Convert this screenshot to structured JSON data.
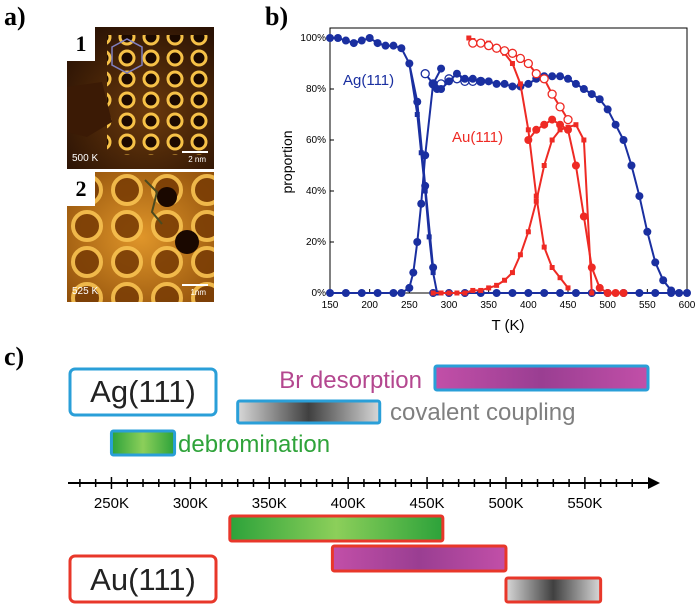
{
  "panels": {
    "a_label": "a)",
    "b_label": "b)",
    "c_label": "c)"
  },
  "stm": [
    {
      "number": "1",
      "temperature": "500 K",
      "scale": "2 nm"
    },
    {
      "number": "2",
      "temperature": "525 K",
      "scale": "1nm"
    }
  ],
  "colors": {
    "ag": "#1a2fa0",
    "au": "#ee2a24",
    "ag_box": "#2a9fd8",
    "au_box": "#e8372a",
    "br_text": "#b4478f",
    "coupling_text": "#7f7f7f",
    "debrom_text": "#2fa33a"
  },
  "chart_data": [
    {
      "type": "line",
      "xlabel": "T (K)",
      "ylabel": "proportion",
      "xlim": [
        150,
        600
      ],
      "ylim": [
        0,
        100
      ],
      "xticks": [
        "150",
        "200",
        "250",
        "300",
        "350",
        "400",
        "450",
        "500",
        "550",
        "600"
      ],
      "yticks": [
        "0%",
        "20%",
        "40%",
        "60%",
        "80%",
        "100%"
      ],
      "annotations": [
        "Ag(111)",
        "Au(111)"
      ],
      "series": [
        {
          "group": "Ag(111)",
          "marker": "filled-circle",
          "x": [
            150,
            160,
            170,
            180,
            190,
            200,
            210,
            220,
            230,
            240,
            250,
            260,
            270,
            280
          ],
          "y": [
            100,
            100,
            99,
            98,
            99,
            100,
            98,
            97,
            97,
            96,
            90,
            75,
            42,
            10
          ]
        },
        {
          "group": "Ag(111)",
          "marker": "open-circle",
          "x": [
            270,
            280,
            290,
            300,
            310,
            320,
            330,
            340
          ],
          "y": [
            86,
            82,
            82,
            84,
            84,
            83,
            83,
            83
          ]
        },
        {
          "group": "Ag(111)",
          "marker": "filled-circle",
          "x": [
            285,
            290,
            300,
            310,
            320,
            330,
            340,
            350,
            360,
            370,
            380,
            390,
            400,
            410,
            420,
            430,
            440,
            450,
            460,
            470,
            480,
            490,
            500,
            510,
            520,
            530,
            540,
            550,
            560,
            570,
            580,
            590
          ],
          "y": [
            80,
            80,
            83,
            86,
            84,
            84,
            83,
            83,
            82,
            82,
            81,
            81,
            82,
            84,
            85,
            85,
            85,
            84,
            82,
            80,
            78,
            76,
            72,
            66,
            60,
            50,
            38,
            24,
            12,
            5,
            1,
            0
          ]
        },
        {
          "group": "Ag(111)",
          "marker": "filled-circle",
          "x": [
            150,
            170,
            190,
            210,
            230,
            240,
            250,
            255,
            260,
            265,
            270,
            280,
            290
          ],
          "y": [
            0,
            0,
            0,
            0,
            0,
            0,
            2,
            8,
            20,
            35,
            54,
            82,
            88
          ]
        },
        {
          "group": "Ag(111)",
          "marker": "filled-square",
          "x": [
            250,
            260,
            265,
            270,
            275,
            280,
            285
          ],
          "y": [
            90,
            70,
            55,
            40,
            22,
            8,
            0
          ]
        },
        {
          "group": "Ag(111)",
          "marker": "filled-circle",
          "x": [
            280,
            300,
            320,
            340,
            360,
            380,
            400,
            420,
            440,
            460,
            480,
            500,
            520,
            540,
            560,
            580,
            600
          ],
          "y": [
            0,
            0,
            0,
            0,
            0,
            0,
            0,
            0,
            0,
            0,
            0,
            0,
            0,
            0,
            0,
            0,
            0
          ]
        },
        {
          "group": "Au(111)",
          "marker": "filled-square",
          "x": [
            280,
            290,
            300,
            310,
            320,
            330,
            340,
            350,
            360,
            370,
            380,
            390,
            400,
            410,
            420,
            430,
            440,
            450,
            460,
            470,
            480
          ],
          "y": [
            0,
            0,
            0,
            0,
            0,
            1,
            1,
            2,
            3,
            5,
            8,
            15,
            24,
            36,
            50,
            60,
            64,
            65,
            66,
            60,
            0
          ]
        },
        {
          "group": "Au(111)",
          "marker": "filled-square",
          "x": [
            325,
            330,
            340,
            350,
            360,
            370,
            380,
            390,
            400,
            410,
            420,
            430,
            440,
            450
          ],
          "y": [
            100,
            99,
            98,
            98,
            96,
            94,
            90,
            82,
            64,
            38,
            18,
            10,
            6,
            2
          ]
        },
        {
          "group": "Au(111)",
          "marker": "open-circle",
          "x": [
            330,
            340,
            350,
            360,
            370,
            380,
            390,
            400,
            410,
            420,
            430,
            440,
            450
          ],
          "y": [
            98,
            98,
            97,
            96,
            95,
            94,
            92,
            90,
            86,
            84,
            78,
            73,
            68
          ]
        },
        {
          "group": "Au(111)",
          "marker": "filled-circle",
          "x": [
            400,
            410,
            420,
            430,
            440,
            450,
            460,
            470,
            480,
            490,
            500,
            510,
            520
          ],
          "y": [
            60,
            64,
            66,
            68,
            66,
            64,
            50,
            30,
            10,
            2,
            0,
            0,
            0
          ]
        }
      ]
    },
    {
      "type": "bar",
      "subtype": "range-bars",
      "axis_min": 225,
      "axis_max": 590,
      "tick_labels": [
        "250K",
        "300K",
        "350K",
        "400K",
        "450K",
        "500K",
        "550K"
      ],
      "tick_values": [
        250,
        300,
        350,
        400,
        450,
        500,
        550
      ],
      "ag_label": "Ag(111)",
      "au_label": "Au(111)",
      "bars": [
        {
          "substrate": "Ag(111)",
          "process": "Br desorption",
          "start": 455,
          "end": 590
        },
        {
          "substrate": "Ag(111)",
          "process": "covalent coupling",
          "start": 330,
          "end": 420
        },
        {
          "substrate": "Ag(111)",
          "process": "debromination",
          "start": 250,
          "end": 290
        },
        {
          "substrate": "Au(111)",
          "process": "debromination",
          "start": 325,
          "end": 460
        },
        {
          "substrate": "Au(111)",
          "process": "Br desorption",
          "start": 390,
          "end": 500
        },
        {
          "substrate": "Au(111)",
          "process": "covalent coupling",
          "start": 500,
          "end": 560
        }
      ]
    }
  ]
}
